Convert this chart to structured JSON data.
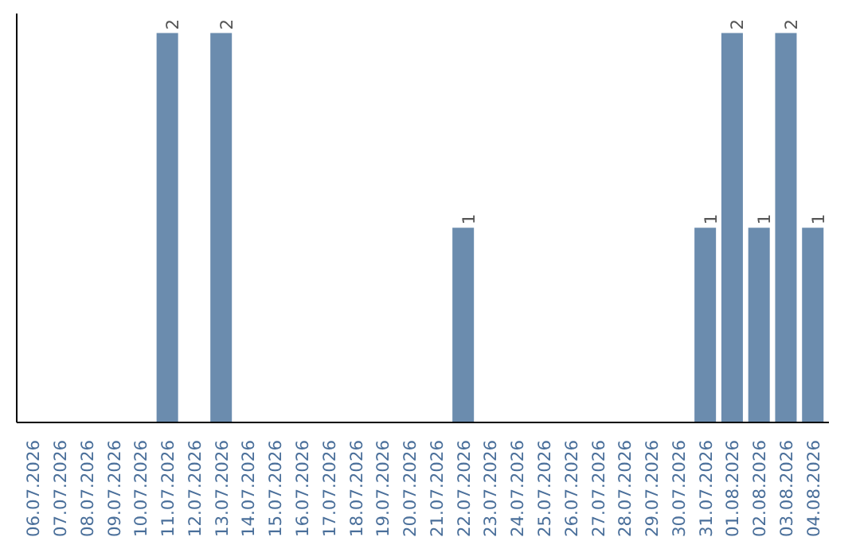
{
  "chart_data": {
    "type": "bar",
    "categories": [
      "06.07.2026",
      "07.07.2026",
      "08.07.2026",
      "09.07.2026",
      "10.07.2026",
      "11.07.2026",
      "12.07.2026",
      "13.07.2026",
      "14.07.2026",
      "15.07.2026",
      "16.07.2026",
      "17.07.2026",
      "18.07.2026",
      "19.07.2026",
      "20.07.2026",
      "21.07.2026",
      "22.07.2026",
      "23.07.2026",
      "24.07.2026",
      "25.07.2026",
      "26.07.2026",
      "27.07.2026",
      "28.07.2026",
      "29.07.2026",
      "30.07.2026",
      "31.07.2026",
      "01.08.2026",
      "02.08.2026",
      "03.08.2026",
      "04.08.2026"
    ],
    "values": [
      0,
      0,
      0,
      0,
      0,
      2,
      0,
      2,
      0,
      0,
      0,
      0,
      0,
      0,
      0,
      0,
      1,
      0,
      0,
      0,
      0,
      0,
      0,
      0,
      0,
      1,
      2,
      1,
      2,
      1
    ],
    "value_labels": [
      null,
      null,
      null,
      null,
      null,
      "2",
      null,
      "2",
      null,
      null,
      null,
      null,
      null,
      null,
      null,
      null,
      "1",
      null,
      null,
      null,
      null,
      null,
      null,
      null,
      null,
      "1",
      "2",
      "1",
      "2",
      "1"
    ],
    "color": "#6b8cae",
    "grid": false
  }
}
